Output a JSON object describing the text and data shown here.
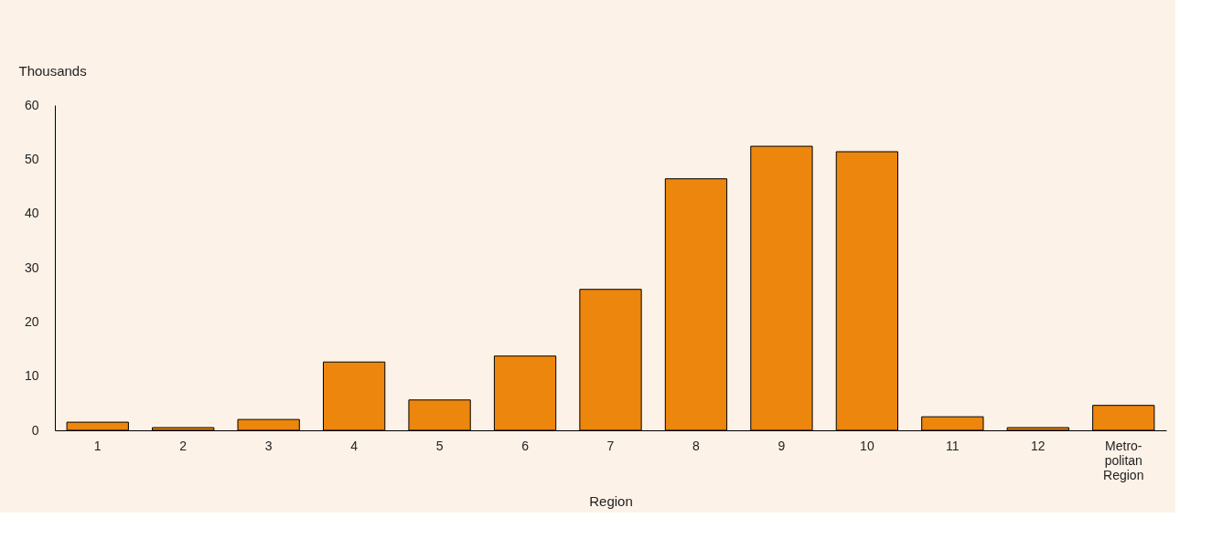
{
  "chart_data": {
    "type": "bar",
    "xlabel": "Region",
    "ylabel": "Thousands",
    "categories": [
      "1",
      "2",
      "3",
      "4",
      "5",
      "6",
      "7",
      "8",
      "9",
      "10",
      "11",
      "12",
      "Metro-\npolitan\nRegion"
    ],
    "values": [
      1.5,
      0.5,
      2.0,
      12.6,
      5.6,
      13.7,
      26.0,
      46.4,
      52.4,
      51.4,
      2.5,
      0.5,
      4.6
    ],
    "color": "#ed860c",
    "ylim": [
      0,
      60
    ],
    "yticks": [
      0,
      10,
      20,
      30,
      40,
      50,
      60
    ],
    "grid": false
  }
}
